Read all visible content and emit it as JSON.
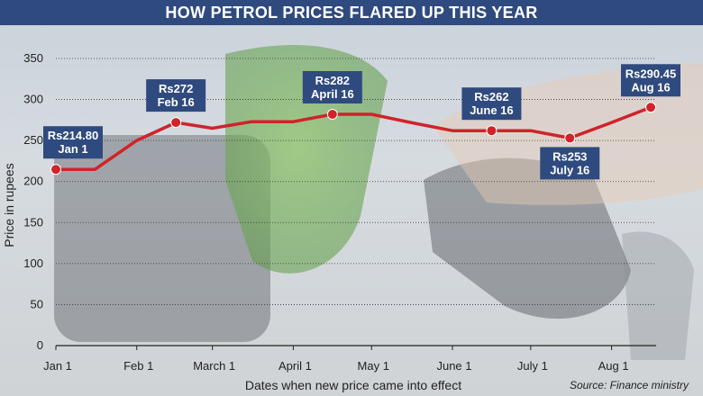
{
  "chart_data": {
    "type": "line",
    "title": "HOW PETROL PRICES FLARED UP THIS YEAR",
    "xlabel": "Dates when new price came into effect",
    "ylabel": "Price in rupees",
    "source": "Source: Finance ministry",
    "ylim": [
      0,
      350
    ],
    "yticks": [
      0,
      50,
      100,
      150,
      200,
      250,
      300,
      350
    ],
    "xlim": [
      "2024-01-01",
      "2024-08-16"
    ],
    "xticks": [
      {
        "date": "2024-01-01",
        "label": "Jan 1"
      },
      {
        "date": "2024-02-01",
        "label": "Feb 1"
      },
      {
        "date": "2024-03-01",
        "label": "March 1"
      },
      {
        "date": "2024-04-01",
        "label": "April 1"
      },
      {
        "date": "2024-05-01",
        "label": "May 1"
      },
      {
        "date": "2024-06-01",
        "label": "June 1"
      },
      {
        "date": "2024-07-01",
        "label": "July 1"
      },
      {
        "date": "2024-08-01",
        "label": "Aug 1"
      }
    ],
    "grid": true,
    "line_color": "#d0232a",
    "label_color": "#2f4a7e",
    "series": [
      {
        "points": [
          {
            "x": "2024-01-01",
            "y": 214.8
          },
          {
            "x": "2024-01-16",
            "y": 214.8
          },
          {
            "x": "2024-02-01",
            "y": 250
          },
          {
            "x": "2024-02-16",
            "y": 272
          },
          {
            "x": "2024-03-01",
            "y": 265
          },
          {
            "x": "2024-03-16",
            "y": 273
          },
          {
            "x": "2024-04-01",
            "y": 273
          },
          {
            "x": "2024-04-16",
            "y": 282
          },
          {
            "x": "2024-05-01",
            "y": 282
          },
          {
            "x": "2024-05-16",
            "y": 272
          },
          {
            "x": "2024-06-01",
            "y": 262
          },
          {
            "x": "2024-06-16",
            "y": 262
          },
          {
            "x": "2024-07-01",
            "y": 262
          },
          {
            "x": "2024-07-16",
            "y": 253
          },
          {
            "x": "2024-08-01",
            "y": 272
          },
          {
            "x": "2024-08-16",
            "y": 290.45
          }
        ]
      }
    ],
    "annotations": [
      {
        "x": "2024-01-01",
        "y": 214.8,
        "lines": [
          "Rs214.80",
          "Jan 1"
        ],
        "position": "above"
      },
      {
        "x": "2024-02-16",
        "y": 272,
        "lines": [
          "Rs272",
          "Feb 16"
        ],
        "position": "above"
      },
      {
        "x": "2024-04-16",
        "y": 282,
        "lines": [
          "Rs282",
          "April 16"
        ],
        "position": "above"
      },
      {
        "x": "2024-06-16",
        "y": 262,
        "lines": [
          "Rs262",
          "June 16"
        ],
        "position": "above"
      },
      {
        "x": "2024-07-16",
        "y": 253,
        "lines": [
          "Rs253",
          "July 16"
        ],
        "position": "below"
      },
      {
        "x": "2024-08-16",
        "y": 290.45,
        "lines": [
          "Rs290.45",
          "Aug 16"
        ],
        "position": "above"
      }
    ]
  }
}
